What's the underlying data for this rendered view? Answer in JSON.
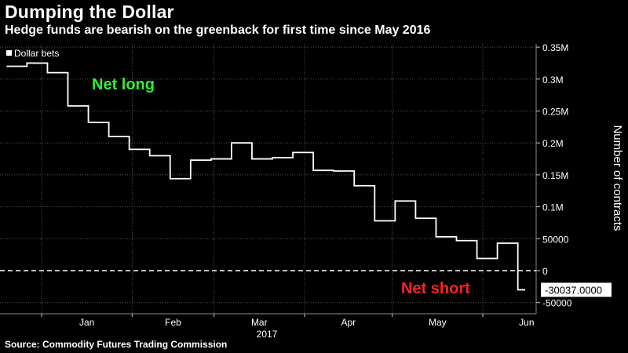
{
  "title": "Dumping the Dollar",
  "subtitle": "Hedge funds are bearish on the greenback for first time since May 2016",
  "source": "Source: Commodity Futures Trading Commission",
  "colors": {
    "background": "#000000",
    "line": "#ffffff",
    "net_long": "#33ee33",
    "net_short": "#ff2222"
  },
  "chart_data": {
    "type": "line",
    "ylabel": "Number of contracts",
    "xlabel": "2017",
    "ylim": [
      -70000,
      350000
    ],
    "yticks": [
      {
        "value": 350000,
        "label": "0.35M"
      },
      {
        "value": 300000,
        "label": "0.3M"
      },
      {
        "value": 250000,
        "label": "0.25M"
      },
      {
        "value": 200000,
        "label": "0.2M"
      },
      {
        "value": 150000,
        "label": "0.15M"
      },
      {
        "value": 100000,
        "label": "0.1M"
      },
      {
        "value": 50000,
        "label": "50000"
      },
      {
        "value": 0,
        "label": "0"
      },
      {
        "value": -50000,
        "label": "-50000"
      }
    ],
    "xticks": [
      "Jan",
      "Feb",
      "Mar",
      "Apr",
      "May",
      "Jun"
    ],
    "grid": true,
    "legend_position": "top-left",
    "series": [
      {
        "name": "Dollar bets",
        "x": [
          "2016-12-20",
          "2016-12-27",
          "2017-01-03",
          "2017-01-10",
          "2017-01-17",
          "2017-01-24",
          "2017-01-31",
          "2017-02-07",
          "2017-02-14",
          "2017-02-21",
          "2017-02-28",
          "2017-03-07",
          "2017-03-14",
          "2017-03-21",
          "2017-03-28",
          "2017-04-04",
          "2017-04-11",
          "2017-04-18",
          "2017-04-25",
          "2017-05-02",
          "2017-05-09",
          "2017-05-16",
          "2017-05-23",
          "2017-05-30",
          "2017-06-06",
          "2017-06-13",
          "2017-06-20",
          "2017-06-27",
          "2017-07-04"
        ],
        "y": [
          320000,
          325000,
          310000,
          258000,
          232000,
          210000,
          190000,
          180000,
          144000,
          173000,
          175000,
          200000,
          175000,
          177000,
          185000,
          157000,
          156000,
          133000,
          78000,
          109000,
          82000,
          53000,
          47000,
          19000,
          43000,
          -30037,
          -30037,
          -30037,
          -30037
        ]
      }
    ],
    "last_value_label": "-30037.0000",
    "annotations": [
      {
        "text": "Net long",
        "color_key": "net_long"
      },
      {
        "text": "Net short",
        "color_key": "net_short"
      }
    ]
  }
}
